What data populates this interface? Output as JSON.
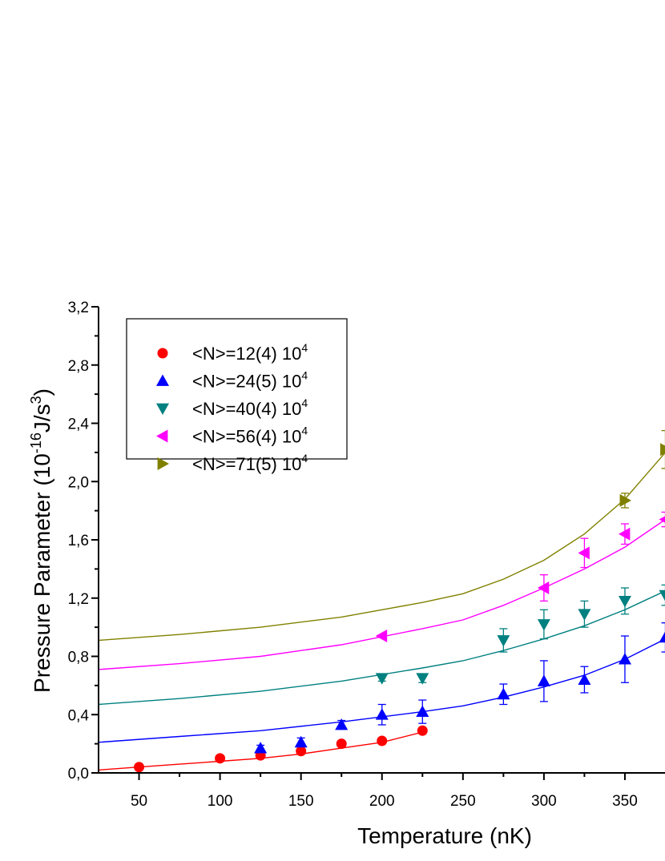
{
  "chart_data": {
    "type": "scatter",
    "xlabel": "Temperature (nK)",
    "ylabel": {
      "main": "Pressure Parameter  (10",
      "exp": "-16",
      "unit": "J/s",
      "unit_exp": "3",
      "close": ")"
    },
    "xlim": [
      25,
      375
    ],
    "ylim": [
      0,
      3.2
    ],
    "x_ticks": [
      50,
      100,
      150,
      200,
      250,
      300,
      350
    ],
    "x_tick_labels": [
      "50",
      "100",
      "150",
      "200",
      "250",
      "300",
      "350"
    ],
    "y_ticks": [
      0,
      0.4,
      0.8,
      1.2,
      1.6,
      2.0,
      2.4,
      2.8,
      3.2
    ],
    "y_tick_labels": [
      "0,0",
      "0,4",
      "0,8",
      "1,2",
      "1,6",
      "2,0",
      "2,4",
      "2,8",
      "3,2"
    ],
    "grid": false,
    "legend_position": "top-left",
    "series": [
      {
        "name": "<N>=12(4) 10",
        "name_exp": "4",
        "color": "#ff0000",
        "marker": "circle",
        "x": [
          50,
          100,
          125,
          150,
          175,
          200,
          225
        ],
        "y": [
          0.04,
          0.1,
          0.12,
          0.15,
          0.2,
          0.22,
          0.29
        ],
        "err": [
          0,
          0,
          0,
          0,
          0,
          0,
          0
        ],
        "fit_x": [
          25,
          50,
          75,
          100,
          125,
          150,
          175,
          200,
          225
        ],
        "fit_y": [
          0.02,
          0.04,
          0.06,
          0.08,
          0.1,
          0.13,
          0.17,
          0.21,
          0.28
        ]
      },
      {
        "name": "<N>=24(5) 10",
        "name_exp": "4",
        "color": "#0000ff",
        "marker": "triangle-up",
        "x": [
          125,
          150,
          175,
          200,
          225,
          275,
          300,
          325,
          350,
          375
        ],
        "y": [
          0.17,
          0.21,
          0.33,
          0.4,
          0.42,
          0.54,
          0.63,
          0.64,
          0.78,
          0.93
        ],
        "err": [
          0.02,
          0.03,
          0.03,
          0.07,
          0.08,
          0.07,
          0.14,
          0.09,
          0.16,
          0.1
        ],
        "fit_x": [
          25,
          75,
          125,
          175,
          225,
          250,
          275,
          300,
          325,
          350,
          375
        ],
        "fit_y": [
          0.21,
          0.25,
          0.29,
          0.35,
          0.42,
          0.46,
          0.52,
          0.59,
          0.67,
          0.78,
          0.92
        ]
      },
      {
        "name": "<N>=40(4) 10",
        "name_exp": "4",
        "color": "#008080",
        "marker": "triangle-down",
        "x": [
          200,
          225,
          275,
          300,
          325,
          350,
          375
        ],
        "y": [
          0.65,
          0.65,
          0.91,
          1.02,
          1.09,
          1.18,
          1.22
        ],
        "err": [
          0.02,
          0.03,
          0.08,
          0.1,
          0.09,
          0.09,
          0.07
        ],
        "fit_x": [
          25,
          75,
          125,
          175,
          225,
          250,
          275,
          300,
          325,
          350,
          375
        ],
        "fit_y": [
          0.47,
          0.51,
          0.56,
          0.63,
          0.72,
          0.77,
          0.84,
          0.92,
          1.01,
          1.12,
          1.25
        ]
      },
      {
        "name": "<N>=56(4) 10",
        "name_exp": "4",
        "color": "#ff00ff",
        "marker": "triangle-left",
        "x": [
          200,
          300,
          325,
          350,
          375
        ],
        "y": [
          0.94,
          1.27,
          1.51,
          1.64,
          1.74
        ],
        "err": [
          0,
          0.09,
          0.1,
          0.07,
          0.05
        ],
        "fit_x": [
          25,
          75,
          125,
          175,
          225,
          250,
          275,
          300,
          325,
          350,
          375
        ],
        "fit_y": [
          0.71,
          0.75,
          0.8,
          0.88,
          0.99,
          1.05,
          1.15,
          1.27,
          1.4,
          1.55,
          1.74
        ]
      },
      {
        "name": "<N>=71(5) 10",
        "name_exp": "4",
        "color": "#808000",
        "marker": "triangle-right",
        "x": [
          350,
          375
        ],
        "y": [
          1.87,
          2.22
        ],
        "err": [
          0.05,
          0.13
        ],
        "fit_x": [
          25,
          75,
          125,
          175,
          200,
          225,
          250,
          275,
          300,
          325,
          350,
          375
        ],
        "fit_y": [
          0.91,
          0.95,
          1.0,
          1.07,
          1.12,
          1.17,
          1.23,
          1.33,
          1.46,
          1.64,
          1.88,
          2.2
        ]
      }
    ]
  }
}
